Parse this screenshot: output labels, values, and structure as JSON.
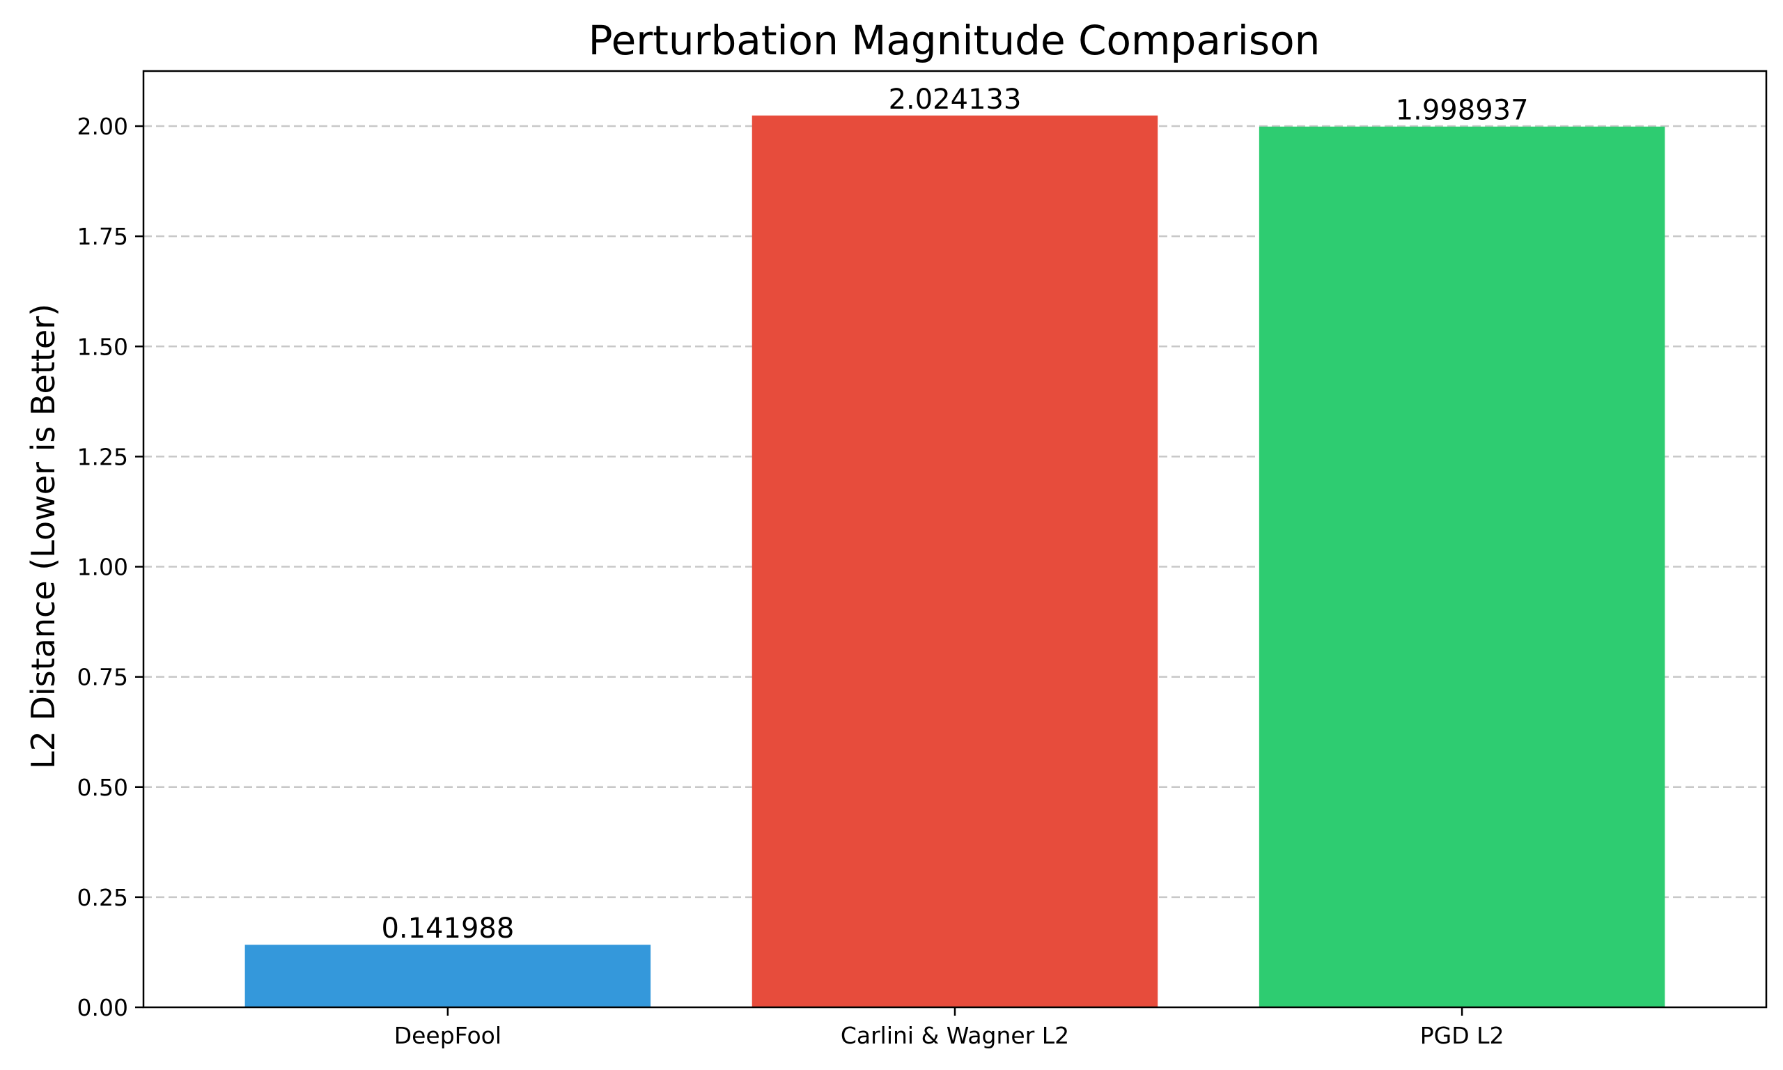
{
  "chart_data": {
    "type": "bar",
    "title": "Perturbation Magnitude Comparison",
    "xlabel": "",
    "ylabel": "L2 Distance (Lower is Better)",
    "categories": [
      "DeepFool",
      "Carlini & Wagner L2",
      "PGD L2"
    ],
    "values": [
      0.141988,
      2.024133,
      1.998937
    ],
    "value_labels": [
      "0.141988",
      "2.024133",
      "1.998937"
    ],
    "colors": [
      "#3498db",
      "#e74c3c",
      "#2ecc71"
    ],
    "ylim": [
      0,
      2.125
    ],
    "yticks": [
      0,
      0.25,
      0.5,
      0.75,
      1.0,
      1.25,
      1.5,
      1.75,
      2.0
    ],
    "ytick_labels": [
      "0.00",
      "0.25",
      "0.50",
      "0.75",
      "1.00",
      "1.25",
      "1.50",
      "1.75",
      "2.00"
    ],
    "grid": "y-dashed",
    "legend": "none"
  }
}
